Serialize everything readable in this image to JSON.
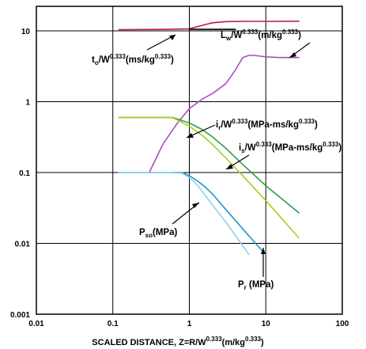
{
  "chart_data": {
    "type": "line",
    "x_scale": "log",
    "y_scale": "log",
    "xlim": [
      0.01,
      100
    ],
    "ylim": [
      0.001,
      20
    ],
    "grid": true,
    "x_ticks": [
      "0.01",
      "0.1",
      "1",
      "10",
      "100"
    ],
    "y_ticks": [
      "0.001",
      "0.01",
      "0.1",
      "1",
      "10"
    ],
    "xlabel": {
      "main": "SCALED DISTANCE, Z=R/W",
      "exp": "0.333",
      "unit": "(m/kg",
      "unit_exp": "0.333",
      "close": ")"
    },
    "series": [
      {
        "name": "t_o",
        "color": "#b5203a",
        "x": [
          0.12,
          0.5,
          1.0,
          1.5,
          2.0,
          3.0,
          5.0,
          10.0,
          27.0
        ],
        "y": [
          10.4,
          10.5,
          10.7,
          12.0,
          13.0,
          13.5,
          13.6,
          13.6,
          13.7
        ]
      },
      {
        "name": "t_o_flat",
        "color": "#000000",
        "x": [
          1.0,
          4.0
        ],
        "y": [
          10.5,
          10.5
        ]
      },
      {
        "name": "L_w",
        "color": "#a94fc0",
        "x": [
          0.3,
          0.45,
          0.7,
          1.0,
          1.5,
          2.0,
          3.0,
          4.0,
          5.0,
          6.0,
          7.0,
          10.0,
          15.0,
          27.0
        ],
        "y": [
          0.1,
          0.25,
          0.5,
          0.8,
          1.1,
          1.3,
          1.8,
          2.8,
          4.2,
          4.5,
          4.5,
          4.3,
          4.2,
          4.2
        ]
      },
      {
        "name": "i_r",
        "color": "#2e9e45",
        "x": [
          0.12,
          0.3,
          0.6,
          1.0,
          1.5,
          2.0,
          3.0,
          5.0,
          10.0,
          27.0
        ],
        "y": [
          0.6,
          0.6,
          0.6,
          0.5,
          0.4,
          0.32,
          0.22,
          0.13,
          0.065,
          0.027
        ]
      },
      {
        "name": "i_s",
        "color": "#a6cf1d",
        "x": [
          0.12,
          0.3,
          0.6,
          1.0,
          1.5,
          2.0,
          3.0,
          5.0,
          10.0,
          27.0
        ],
        "y": [
          0.6,
          0.6,
          0.6,
          0.45,
          0.33,
          0.25,
          0.16,
          0.09,
          0.04,
          0.012
        ]
      },
      {
        "name": "P_r",
        "color": "#1e98c8",
        "x": [
          0.12,
          0.5,
          0.8,
          1.0,
          1.3,
          1.6,
          2.0,
          3.0,
          5.0,
          8.0,
          10.0
        ],
        "y": [
          0.1,
          0.1,
          0.1,
          0.09,
          0.075,
          0.063,
          0.05,
          0.03,
          0.016,
          0.009,
          0.007
        ]
      },
      {
        "name": "P_so",
        "color": "#8fd0ee",
        "x": [
          0.12,
          0.5,
          0.8,
          1.0,
          1.3,
          1.6,
          2.0,
          3.0,
          4.0,
          6.0
        ],
        "y": [
          0.1,
          0.1,
          0.098,
          0.085,
          0.065,
          0.048,
          0.035,
          0.02,
          0.013,
          0.007
        ]
      }
    ],
    "annotations": {
      "t_o": {
        "main": "t",
        "sub": "o",
        "div": "/W",
        "exp": "0.333",
        "unit": "(ms/kg",
        "unit_exp": "0.333",
        "close": ")"
      },
      "L_w": {
        "main": "L",
        "sub": "w",
        "div": "/W",
        "exp": "0.333",
        "unit": "(m/kg",
        "unit_exp": "0.333",
        "close": ")"
      },
      "i_r": {
        "main": "i",
        "sub": "r",
        "div": "/W",
        "exp": "0.333",
        "unit": "(MPa-ms/kg",
        "unit_exp": "0.333",
        "close": ")"
      },
      "i_s": {
        "main": "i",
        "sub": "s",
        "div": "/W",
        "exp": "0.333",
        "unit": "(MPa-ms/kg",
        "unit_exp": "0.333",
        "close": ")"
      },
      "P_so": {
        "main": "P",
        "sub": "so",
        "unit": "(MPa)"
      },
      "P_r": {
        "main": "P",
        "sub": "r",
        "unit": " (MPa)"
      }
    }
  }
}
